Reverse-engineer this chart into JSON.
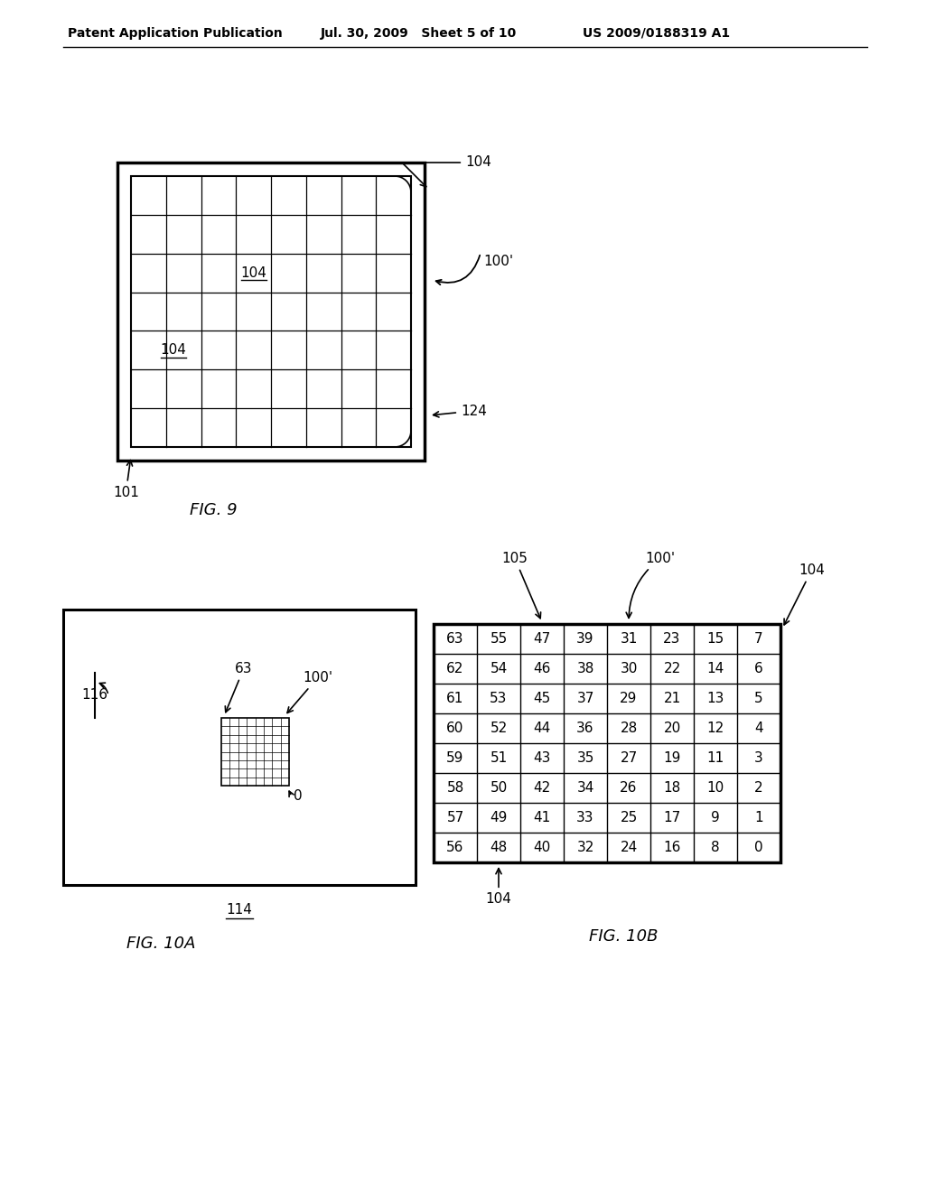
{
  "header_left": "Patent Application Publication",
  "header_mid": "Jul. 30, 2009   Sheet 5 of 10",
  "header_right": "US 2009/0188319 A1",
  "fig9_label": "FIG. 9",
  "fig10a_label": "FIG. 10A",
  "fig10b_label": "FIG. 10B",
  "fig9_grid_rows": 7,
  "fig9_grid_cols": 8,
  "fig10b_grid": [
    [
      63,
      55,
      47,
      39,
      31,
      23,
      15,
      7
    ],
    [
      62,
      54,
      46,
      38,
      30,
      22,
      14,
      6
    ],
    [
      61,
      53,
      45,
      37,
      29,
      21,
      13,
      5
    ],
    [
      60,
      52,
      44,
      36,
      28,
      20,
      12,
      4
    ],
    [
      59,
      51,
      43,
      35,
      27,
      19,
      11,
      3
    ],
    [
      58,
      50,
      42,
      34,
      26,
      18,
      10,
      2
    ],
    [
      57,
      49,
      41,
      33,
      25,
      17,
      9,
      1
    ],
    [
      56,
      48,
      40,
      32,
      24,
      16,
      8,
      0
    ]
  ],
  "bg_color": "#ffffff",
  "line_color": "#000000"
}
